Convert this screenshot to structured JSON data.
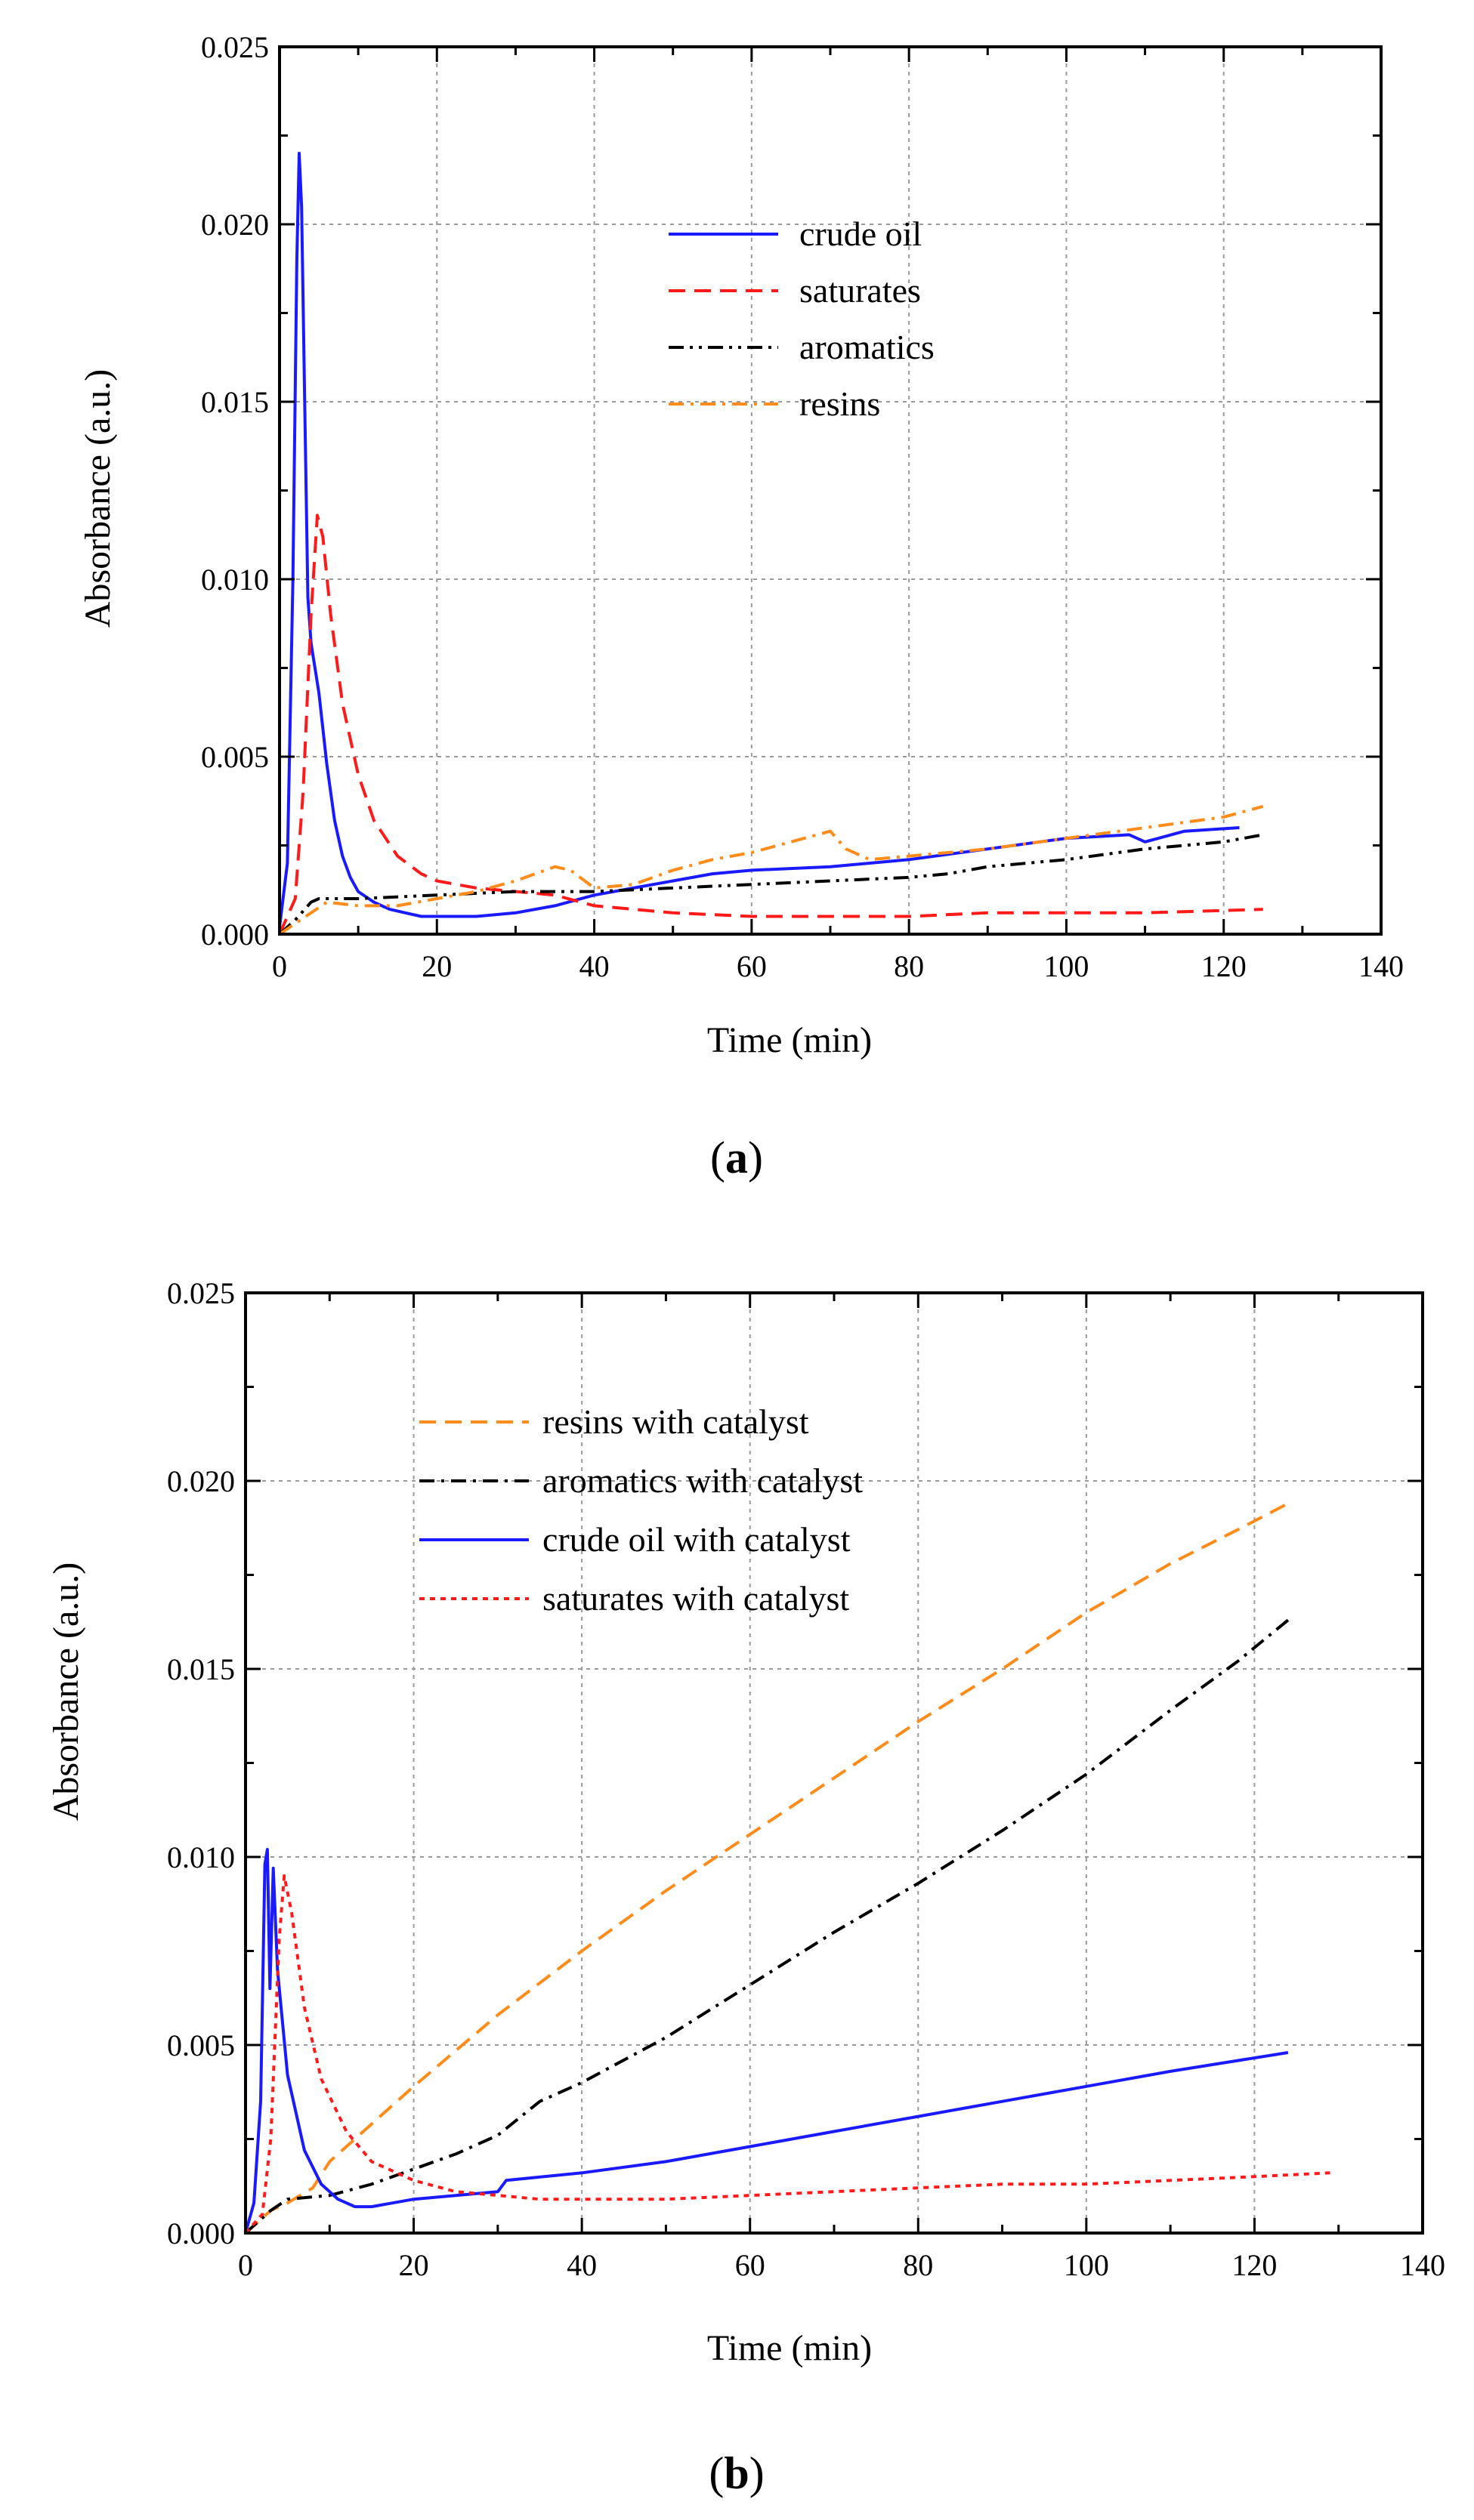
{
  "chart_data": [
    {
      "type": "line",
      "panel_label": "a",
      "xlabel": "Time (min)",
      "ylabel": "Absorbance (a.u.)",
      "xlim": [
        0,
        140
      ],
      "ylim": [
        0,
        0.025
      ],
      "x_ticks": [
        "0",
        "20",
        "40",
        "60",
        "80",
        "100",
        "120",
        "140"
      ],
      "y_ticks": [
        "0.000",
        "0.005",
        "0.010",
        "0.015",
        "0.020",
        "0.025"
      ],
      "grid": true,
      "legend_position": "top-center",
      "series": [
        {
          "name": "crude oil",
          "color": "#1a1aff",
          "style": "solid",
          "points": [
            [
              0,
              0.0002
            ],
            [
              1,
              0.002
            ],
            [
              1.7,
              0.01
            ],
            [
              2.2,
              0.019
            ],
            [
              2.5,
              0.022
            ],
            [
              2.8,
              0.0205
            ],
            [
              3.2,
              0.015
            ],
            [
              3.6,
              0.0095
            ],
            [
              4,
              0.0082
            ],
            [
              5,
              0.0068
            ],
            [
              6,
              0.0048
            ],
            [
              7,
              0.0032
            ],
            [
              8,
              0.0022
            ],
            [
              9,
              0.0016
            ],
            [
              10,
              0.0012
            ],
            [
              12,
              0.0009
            ],
            [
              14,
              0.0007
            ],
            [
              16,
              0.0006
            ],
            [
              18,
              0.0005
            ],
            [
              20,
              0.0005
            ],
            [
              25,
              0.0005
            ],
            [
              30,
              0.0006
            ],
            [
              35,
              0.0008
            ],
            [
              40,
              0.0011
            ],
            [
              45,
              0.0013
            ],
            [
              50,
              0.0015
            ],
            [
              55,
              0.0017
            ],
            [
              60,
              0.0018
            ],
            [
              70,
              0.0019
            ],
            [
              80,
              0.0021
            ],
            [
              90,
              0.0024
            ],
            [
              100,
              0.0027
            ],
            [
              108,
              0.0028
            ],
            [
              110,
              0.0026
            ],
            [
              115,
              0.0029
            ],
            [
              122,
              0.003
            ]
          ]
        },
        {
          "name": "saturates",
          "color": "#ff1a1a",
          "style": "dashed",
          "points": [
            [
              0,
              0
            ],
            [
              2,
              0.001
            ],
            [
              3,
              0.004
            ],
            [
              4,
              0.009
            ],
            [
              4.8,
              0.0118
            ],
            [
              5.5,
              0.0112
            ],
            [
              6.5,
              0.009
            ],
            [
              8,
              0.0065
            ],
            [
              10,
              0.0045
            ],
            [
              12,
              0.0032
            ],
            [
              15,
              0.0022
            ],
            [
              18,
              0.0017
            ],
            [
              20,
              0.0015
            ],
            [
              25,
              0.0013
            ],
            [
              30,
              0.0012
            ],
            [
              35,
              0.0011
            ],
            [
              40,
              0.0008
            ],
            [
              45,
              0.0007
            ],
            [
              50,
              0.0006
            ],
            [
              60,
              0.0005
            ],
            [
              70,
              0.0005
            ],
            [
              80,
              0.0005
            ],
            [
              90,
              0.0006
            ],
            [
              100,
              0.0006
            ],
            [
              110,
              0.0006
            ],
            [
              125,
              0.0007
            ]
          ]
        },
        {
          "name": "aromatics",
          "color": "#000000",
          "style": "dashdotdot",
          "points": [
            [
              0,
              0
            ],
            [
              2,
              0.0004
            ],
            [
              4,
              0.0009
            ],
            [
              5,
              0.001
            ],
            [
              10,
              0.001
            ],
            [
              20,
              0.0011
            ],
            [
              30,
              0.0012
            ],
            [
              40,
              0.0012
            ],
            [
              50,
              0.0013
            ],
            [
              60,
              0.0014
            ],
            [
              70,
              0.0015
            ],
            [
              80,
              0.0016
            ],
            [
              85,
              0.0017
            ],
            [
              90,
              0.0019
            ],
            [
              100,
              0.0021
            ],
            [
              110,
              0.0024
            ],
            [
              120,
              0.0026
            ],
            [
              125,
              0.0028
            ]
          ]
        },
        {
          "name": "resins",
          "color": "#ff8c1a",
          "style": "dashdot",
          "points": [
            [
              0,
              0
            ],
            [
              2,
              0.0003
            ],
            [
              4,
              0.0006
            ],
            [
              6,
              0.0009
            ],
            [
              10,
              0.0008
            ],
            [
              15,
              0.0008
            ],
            [
              20,
              0.001
            ],
            [
              25,
              0.0012
            ],
            [
              30,
              0.0015
            ],
            [
              35,
              0.0019
            ],
            [
              37,
              0.0018
            ],
            [
              40,
              0.0013
            ],
            [
              45,
              0.0014
            ],
            [
              50,
              0.0018
            ],
            [
              55,
              0.0021
            ],
            [
              60,
              0.0023
            ],
            [
              65,
              0.0026
            ],
            [
              70,
              0.0029
            ],
            [
              72,
              0.0024
            ],
            [
              75,
              0.0021
            ],
            [
              80,
              0.0022
            ],
            [
              90,
              0.0024
            ],
            [
              100,
              0.0027
            ],
            [
              110,
              0.003
            ],
            [
              120,
              0.0033
            ],
            [
              125,
              0.0036
            ]
          ]
        }
      ]
    },
    {
      "type": "line",
      "panel_label": "b",
      "xlabel": "Time (min)",
      "ylabel": "Absorbance (a.u.)",
      "xlim": [
        0,
        140
      ],
      "ylim": [
        0,
        0.025
      ],
      "x_ticks": [
        "0",
        "20",
        "40",
        "60",
        "80",
        "100",
        "120",
        "140"
      ],
      "y_ticks": [
        "0.000",
        "0.005",
        "0.010",
        "0.015",
        "0.020",
        "0.025"
      ],
      "grid": true,
      "legend_position": "top-center",
      "series": [
        {
          "name": "resins with catalyst",
          "color": "#ff8c1a",
          "style": "dashed",
          "points": [
            [
              0,
              0
            ],
            [
              3,
              0.0006
            ],
            [
              5,
              0.0008
            ],
            [
              8,
              0.0012
            ],
            [
              10,
              0.0019
            ],
            [
              15,
              0.0029
            ],
            [
              20,
              0.0039
            ],
            [
              30,
              0.0058
            ],
            [
              40,
              0.0075
            ],
            [
              50,
              0.0091
            ],
            [
              60,
              0.0106
            ],
            [
              70,
              0.0121
            ],
            [
              80,
              0.0136
            ],
            [
              90,
              0.015
            ],
            [
              100,
              0.0165
            ],
            [
              110,
              0.0178
            ],
            [
              118,
              0.0187
            ],
            [
              124,
              0.0194
            ]
          ]
        },
        {
          "name": "aromatics with catalyst",
          "color": "#000000",
          "style": "dashdot",
          "points": [
            [
              0,
              0
            ],
            [
              3,
              0.0006
            ],
            [
              5,
              0.0009
            ],
            [
              10,
              0.001
            ],
            [
              15,
              0.0013
            ],
            [
              20,
              0.0017
            ],
            [
              25,
              0.0021
            ],
            [
              30,
              0.0026
            ],
            [
              35,
              0.0035
            ],
            [
              40,
              0.004
            ],
            [
              50,
              0.0052
            ],
            [
              60,
              0.0066
            ],
            [
              70,
              0.008
            ],
            [
              80,
              0.0093
            ],
            [
              90,
              0.0107
            ],
            [
              100,
              0.0122
            ],
            [
              110,
              0.0139
            ],
            [
              118,
              0.0152
            ],
            [
              124,
              0.0163
            ]
          ]
        },
        {
          "name": "crude oil with catalyst",
          "color": "#1a1aff",
          "style": "solid",
          "points": [
            [
              0,
              0
            ],
            [
              1,
              0.0008
            ],
            [
              1.8,
              0.0035
            ],
            [
              2.3,
              0.0098
            ],
            [
              2.6,
              0.0102
            ],
            [
              2.9,
              0.0065
            ],
            [
              3.3,
              0.0097
            ],
            [
              3.8,
              0.007
            ],
            [
              5,
              0.0042
            ],
            [
              7,
              0.0022
            ],
            [
              9,
              0.0013
            ],
            [
              11,
              0.0009
            ],
            [
              13,
              0.0007
            ],
            [
              15,
              0.0007
            ],
            [
              20,
              0.0009
            ],
            [
              25,
              0.001
            ],
            [
              30,
              0.0011
            ],
            [
              31,
              0.0014
            ],
            [
              40,
              0.0016
            ],
            [
              50,
              0.0019
            ],
            [
              60,
              0.0023
            ],
            [
              70,
              0.0027
            ],
            [
              80,
              0.0031
            ],
            [
              90,
              0.0035
            ],
            [
              100,
              0.0039
            ],
            [
              110,
              0.0043
            ],
            [
              124,
              0.0048
            ]
          ]
        },
        {
          "name": "saturates with catalyst",
          "color": "#ff1a1a",
          "style": "dotted",
          "points": [
            [
              0,
              0
            ],
            [
              2,
              0.0005
            ],
            [
              3,
              0.0025
            ],
            [
              4,
              0.0078
            ],
            [
              4.6,
              0.0095
            ],
            [
              5.5,
              0.0085
            ],
            [
              7,
              0.006
            ],
            [
              9,
              0.0041
            ],
            [
              12,
              0.0027
            ],
            [
              15,
              0.0019
            ],
            [
              20,
              0.0014
            ],
            [
              25,
              0.0011
            ],
            [
              30,
              0.001
            ],
            [
              35,
              0.0009
            ],
            [
              40,
              0.0009
            ],
            [
              50,
              0.0009
            ],
            [
              60,
              0.001
            ],
            [
              70,
              0.0011
            ],
            [
              80,
              0.0012
            ],
            [
              90,
              0.0013
            ],
            [
              100,
              0.0013
            ],
            [
              110,
              0.0014
            ],
            [
              120,
              0.0015
            ],
            [
              129,
              0.0016
            ]
          ]
        }
      ]
    }
  ]
}
